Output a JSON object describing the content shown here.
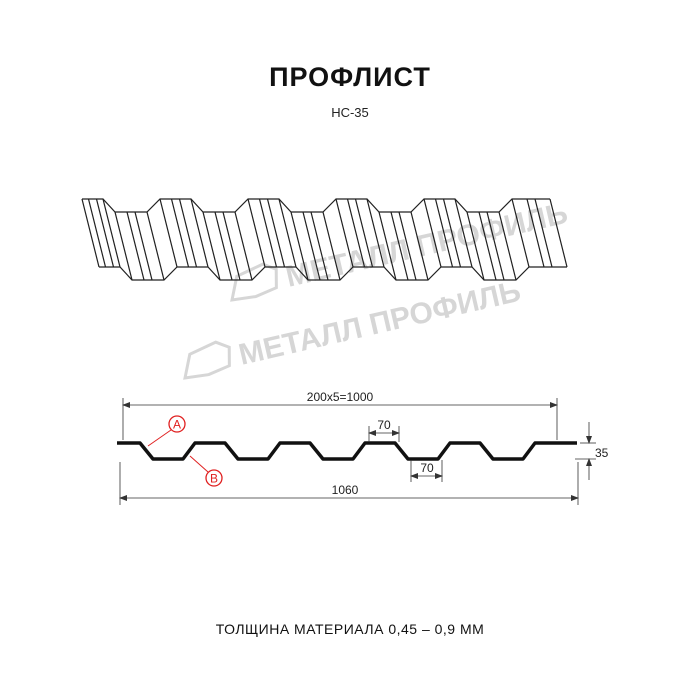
{
  "header": {
    "title": "ПРОФЛИСТ",
    "subtitle": "НС-35"
  },
  "watermark": "МЕТАЛЛ ПРОФИЛЬ",
  "drawing": {
    "pitch_label": "200x5=1000",
    "rib_top_width": "70",
    "rib_bottom_width": "70",
    "height": "35",
    "total_width": "1060",
    "marker_a": "A",
    "marker_b": "B",
    "marker_color": "#e02020"
  },
  "footer": {
    "thickness": "ТОЛЩИНА МАТЕРИАЛА 0,45 – 0,9 ММ"
  }
}
